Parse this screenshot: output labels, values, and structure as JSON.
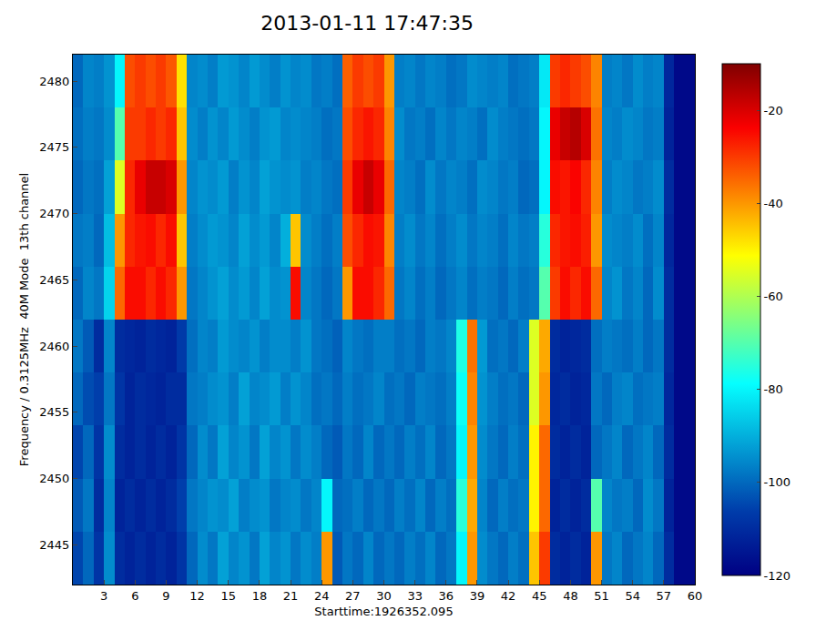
{
  "chart_data": {
    "type": "heatmap",
    "title": "2013-01-11 17:47:35",
    "x_label": "Starttime:1926352.095",
    "y_label": "Frequency / 0.3125MHz  40M Mode  13th channel",
    "x": [
      0.5,
      1.5,
      2.5,
      3.5,
      4.5,
      5.5,
      6.5,
      7.5,
      8.5,
      9.5,
      10.5,
      11.5,
      12.5,
      13.5,
      14.5,
      15.5,
      16.5,
      17.5,
      18.5,
      19.5,
      20.5,
      21.5,
      22.5,
      23.5,
      24.5,
      25.5,
      26.5,
      27.5,
      28.5,
      29.5,
      30.5,
      31.5,
      32.5,
      33.5,
      34.5,
      35.5,
      36.5,
      37.5,
      38.5,
      39.5,
      40.5,
      41.5,
      42.5,
      43.5,
      44.5,
      45.5,
      46.5,
      47.5,
      48.5,
      49.5,
      50.5,
      51.5,
      52.5,
      53.5,
      54.5,
      55.5,
      56.5,
      57.5,
      58.5,
      59.5
    ],
    "y": [
      2444,
      2448,
      2452,
      2456,
      2460,
      2464,
      2468,
      2472,
      2476,
      2480
    ],
    "z": [
      [
        -105,
        -100,
        -108,
        -95,
        -110,
        -112,
        -110,
        -112,
        -110,
        -112,
        -108,
        -100,
        -95,
        -98,
        -92,
        -96,
        -94,
        -98,
        -92,
        -96,
        -94,
        -98,
        -95,
        -97,
        -40,
        -102,
        -98,
        -100,
        -96,
        -100,
        -98,
        -100,
        -97,
        -99,
        -96,
        -100,
        -98,
        -80,
        -40,
        -95,
        -98,
        -100,
        -97,
        -99,
        -45,
        -30,
        -110,
        -112,
        -110,
        -112,
        -40,
        -98,
        -96,
        -100,
        -98,
        -96,
        -100,
        -110,
        -118,
        -118
      ],
      [
        -102,
        -98,
        -110,
        -96,
        -112,
        -110,
        -112,
        -110,
        -112,
        -110,
        -106,
        -98,
        -96,
        -94,
        -95,
        -92,
        -97,
        -95,
        -94,
        -98,
        -96,
        -95,
        -98,
        -96,
        -80,
        -100,
        -99,
        -97,
        -100,
        -98,
        -100,
        -97,
        -99,
        -96,
        -100,
        -97,
        -99,
        -75,
        -42,
        -96,
        -100,
        -97,
        -99,
        -98,
        -50,
        -35,
        -112,
        -110,
        -112,
        -110,
        -70,
        -96,
        -98,
        -97,
        -100,
        -95,
        -98,
        -112,
        -118,
        -118
      ],
      [
        -105,
        -100,
        -108,
        -95,
        -110,
        -112,
        -110,
        -112,
        -110,
        -112,
        -108,
        -100,
        -95,
        -98,
        -92,
        -96,
        -94,
        -98,
        -92,
        -96,
        -94,
        -98,
        -95,
        -97,
        -100,
        -102,
        -98,
        -100,
        -96,
        -100,
        -98,
        -100,
        -97,
        -99,
        -96,
        -100,
        -98,
        -80,
        -40,
        -95,
        -98,
        -100,
        -97,
        -99,
        -50,
        -35,
        -110,
        -112,
        -110,
        -112,
        -100,
        -98,
        -96,
        -100,
        -98,
        -96,
        -100,
        -110,
        -118,
        -118
      ],
      [
        -100,
        -104,
        -106,
        -98,
        -108,
        -112,
        -110,
        -111,
        -112,
        -110,
        -110,
        -98,
        -97,
        -95,
        -94,
        -97,
        -92,
        -96,
        -95,
        -93,
        -97,
        -94,
        -96,
        -99,
        -98,
        -100,
        -97,
        -99,
        -98,
        -96,
        -99,
        -98,
        -100,
        -97,
        -98,
        -99,
        -97,
        -78,
        -38,
        -94,
        -97,
        -99,
        -98,
        -100,
        -55,
        -40,
        -111,
        -110,
        -112,
        -111,
        -98,
        -100,
        -97,
        -96,
        -99,
        -98,
        -97,
        -111,
        -118,
        -118
      ],
      [
        -98,
        -102,
        -110,
        -96,
        -110,
        -111,
        -112,
        -110,
        -111,
        -112,
        -107,
        -99,
        -96,
        -97,
        -93,
        -95,
        -96,
        -94,
        -97,
        -95,
        -95,
        -97,
        -94,
        -98,
        -99,
        -101,
        -96,
        -98,
        -99,
        -97,
        -97,
        -99,
        -98,
        -100,
        -97,
        -98,
        -96,
        -76,
        -36,
        -93,
        -99,
        -98,
        -100,
        -97,
        -55,
        -42,
        -110,
        -112,
        -111,
        -110,
        -99,
        -97,
        -98,
        -99,
        -97,
        -100,
        -98,
        -110,
        -118,
        -118
      ],
      [
        -100,
        -96,
        -98,
        -85,
        -35,
        -25,
        -25,
        -28,
        -25,
        -28,
        -40,
        -98,
        -96,
        -94,
        -92,
        -95,
        -93,
        -96,
        -92,
        -95,
        -94,
        -25,
        -96,
        -98,
        -100,
        -98,
        -40,
        -25,
        -25,
        -28,
        -35,
        -98,
        -96,
        -99,
        -97,
        -100,
        -98,
        -96,
        -99,
        -97,
        -98,
        -100,
        -97,
        -99,
        -98,
        -70,
        -30,
        -25,
        -28,
        -25,
        -35,
        -96,
        -94,
        -98,
        -96,
        -100,
        -95,
        -110,
        -118,
        -118
      ],
      [
        -98,
        -97,
        -100,
        -88,
        -40,
        -28,
        -26,
        -25,
        -28,
        -25,
        -45,
        -97,
        -95,
        -93,
        -94,
        -96,
        -92,
        -95,
        -93,
        -96,
        -90,
        -45,
        -95,
        -97,
        -99,
        -97,
        -32,
        -28,
        -25,
        -26,
        -38,
        -97,
        -95,
        -98,
        -96,
        -99,
        -97,
        -95,
        -98,
        -96,
        -97,
        -99,
        -96,
        -98,
        -97,
        -75,
        -28,
        -26,
        -25,
        -27,
        -40,
        -95,
        -96,
        -97,
        -95,
        -99,
        -96,
        -111,
        -118,
        -118
      ],
      [
        -100,
        -98,
        -99,
        -92,
        -55,
        -28,
        -22,
        -18,
        -18,
        -20,
        -40,
        -96,
        -94,
        -95,
        -93,
        -97,
        -94,
        -96,
        -92,
        -94,
        -95,
        -94,
        -97,
        -96,
        -98,
        -99,
        -30,
        -22,
        -18,
        -22,
        -35,
        -96,
        -97,
        -99,
        -95,
        -98,
        -96,
        -97,
        -99,
        -95,
        -96,
        -98,
        -97,
        -100,
        -99,
        -80,
        -25,
        -26,
        -24,
        -28,
        -38,
        -97,
        -95,
        -96,
        -98,
        -97,
        -95,
        -110,
        -118,
        -118
      ],
      [
        -99,
        -97,
        -98,
        -95,
        -70,
        -30,
        -30,
        -28,
        -30,
        -28,
        -45,
        -95,
        -97,
        -94,
        -96,
        -93,
        -95,
        -97,
        -94,
        -93,
        -96,
        -95,
        -96,
        -97,
        -99,
        -98,
        -32,
        -28,
        -26,
        -28,
        -38,
        -95,
        -98,
        -97,
        -99,
        -96,
        -98,
        -96,
        -97,
        -99,
        -95,
        -97,
        -98,
        -99,
        -98,
        -80,
        -22,
        -18,
        -16,
        -20,
        -36,
        -96,
        -97,
        -95,
        -96,
        -98,
        -97,
        -112,
        -118,
        -118
      ],
      [
        -100,
        -96,
        -97,
        -94,
        -80,
        -32,
        -30,
        -32,
        -30,
        -33,
        -48,
        -96,
        -95,
        -97,
        -93,
        -94,
        -96,
        -93,
        -95,
        -97,
        -94,
        -96,
        -95,
        -98,
        -97,
        -99,
        -34,
        -30,
        -32,
        -30,
        -40,
        -97,
        -96,
        -98,
        -96,
        -97,
        -99,
        -98,
        -95,
        -96,
        -97,
        -96,
        -99,
        -98,
        -97,
        -82,
        -30,
        -28,
        -30,
        -32,
        -38,
        -97,
        -96,
        -98,
        -95,
        -97,
        -96,
        -111,
        -118,
        -118
      ]
    ],
    "xlim": [
      0,
      60
    ],
    "xticks": [
      3,
      6,
      9,
      12,
      15,
      18,
      21,
      24,
      27,
      30,
      33,
      36,
      39,
      42,
      45,
      48,
      51,
      54,
      57,
      60
    ],
    "ylim": [
      2442,
      2482
    ],
    "yticks": [
      2445,
      2450,
      2455,
      2460,
      2465,
      2470,
      2475,
      2480
    ],
    "colorbar_range": [
      -120,
      -10
    ],
    "colorbar_ticks": [
      -20,
      -40,
      -60,
      -80,
      -100,
      -120
    ],
    "color": "Jet",
    "grid": false
  }
}
